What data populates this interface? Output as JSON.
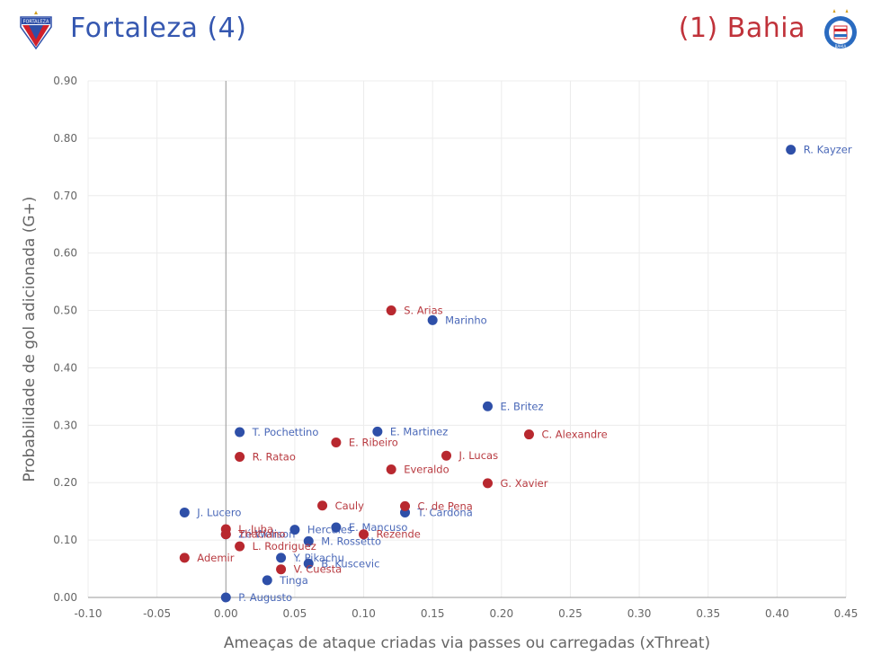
{
  "header": {
    "home_title": "Fortaleza (4)",
    "away_title": "(1) Bahia",
    "home_badge_text": "FORTALEZA",
    "away_badge_text": "BAHIA"
  },
  "colors": {
    "home": "#2e4fa8",
    "away": "#b8282f",
    "home_label": "#4a68b8",
    "away_label": "#b83a40",
    "grid": "#ececec",
    "axis": "#999999"
  },
  "chart_data": {
    "type": "scatter",
    "title": "",
    "xlabel": "Ameaças de ataque criadas via passes ou carregadas (xThreat)",
    "ylabel": "Probabilidade de gol adicionada (G+)",
    "xlim": [
      -0.1,
      0.45
    ],
    "ylim": [
      0.0,
      0.9
    ],
    "xticks": [
      -0.1,
      -0.05,
      0.0,
      0.05,
      0.1,
      0.15,
      0.2,
      0.25,
      0.3,
      0.35,
      0.4,
      0.45
    ],
    "yticks": [
      0.0,
      0.1,
      0.2,
      0.3,
      0.4,
      0.5,
      0.6,
      0.7,
      0.8,
      0.9
    ],
    "xtick_labels": [
      "-0.10",
      "-0.05",
      "0.00",
      "0.05",
      "0.10",
      "0.15",
      "0.20",
      "0.25",
      "0.30",
      "0.35",
      "0.40",
      "0.45"
    ],
    "ytick_labels": [
      "0.00",
      "0.10",
      "0.20",
      "0.30",
      "0.40",
      "0.50",
      "0.60",
      "0.70",
      "0.80",
      "0.90"
    ],
    "grid": true,
    "series": [
      {
        "name": "Fortaleza",
        "team": "home",
        "points": [
          {
            "label": "R. Kayzer",
            "x": 0.41,
            "y": 0.78
          },
          {
            "label": "Marinho",
            "x": 0.15,
            "y": 0.483
          },
          {
            "label": "E. Britez",
            "x": 0.19,
            "y": 0.333
          },
          {
            "label": "T. Pochettino",
            "x": 0.01,
            "y": 0.288
          },
          {
            "label": "E. Martinez",
            "x": 0.11,
            "y": 0.289
          },
          {
            "label": "T. Cardona",
            "x": 0.13,
            "y": 0.148
          },
          {
            "label": "J. Lucero",
            "x": -0.03,
            "y": 0.148
          },
          {
            "label": "Zé Welison",
            "x": 0.0,
            "y": 0.11
          },
          {
            "label": "Hercules",
            "x": 0.05,
            "y": 0.118
          },
          {
            "label": "E. Mancuso",
            "x": 0.08,
            "y": 0.122
          },
          {
            "label": "M. Rossetto",
            "x": 0.06,
            "y": 0.098
          },
          {
            "label": "Y. Pikachu",
            "x": 0.04,
            "y": 0.069
          },
          {
            "label": "B. Kuscevic",
            "x": 0.06,
            "y": 0.059
          },
          {
            "label": "Tinga",
            "x": 0.03,
            "y": 0.03
          },
          {
            "label": "P. Augusto",
            "x": 0.0,
            "y": 0.0
          }
        ]
      },
      {
        "name": "Bahia",
        "team": "away",
        "points": [
          {
            "label": "S. Arias",
            "x": 0.12,
            "y": 0.5
          },
          {
            "label": "C. Alexandre",
            "x": 0.22,
            "y": 0.284
          },
          {
            "label": "E. Ribeiro",
            "x": 0.08,
            "y": 0.27
          },
          {
            "label": "J. Lucas",
            "x": 0.16,
            "y": 0.247
          },
          {
            "label": "R. Ratao",
            "x": 0.01,
            "y": 0.245
          },
          {
            "label": "Everaldo",
            "x": 0.12,
            "y": 0.223
          },
          {
            "label": "G. Xavier",
            "x": 0.19,
            "y": 0.199
          },
          {
            "label": "Cauly",
            "x": 0.07,
            "y": 0.16
          },
          {
            "label": "C. de Pena",
            "x": 0.13,
            "y": 0.159
          },
          {
            "label": "L. Juba",
            "x": 0.0,
            "y": 0.119
          },
          {
            "label": "Thaciano",
            "x": 0.0,
            "y": 0.11
          },
          {
            "label": "Rezende",
            "x": 0.1,
            "y": 0.11
          },
          {
            "label": "L. Rodriguez",
            "x": 0.01,
            "y": 0.089
          },
          {
            "label": "Ademir",
            "x": -0.03,
            "y": 0.069
          },
          {
            "label": "V. Cuesta",
            "x": 0.04,
            "y": 0.049
          }
        ]
      }
    ]
  }
}
